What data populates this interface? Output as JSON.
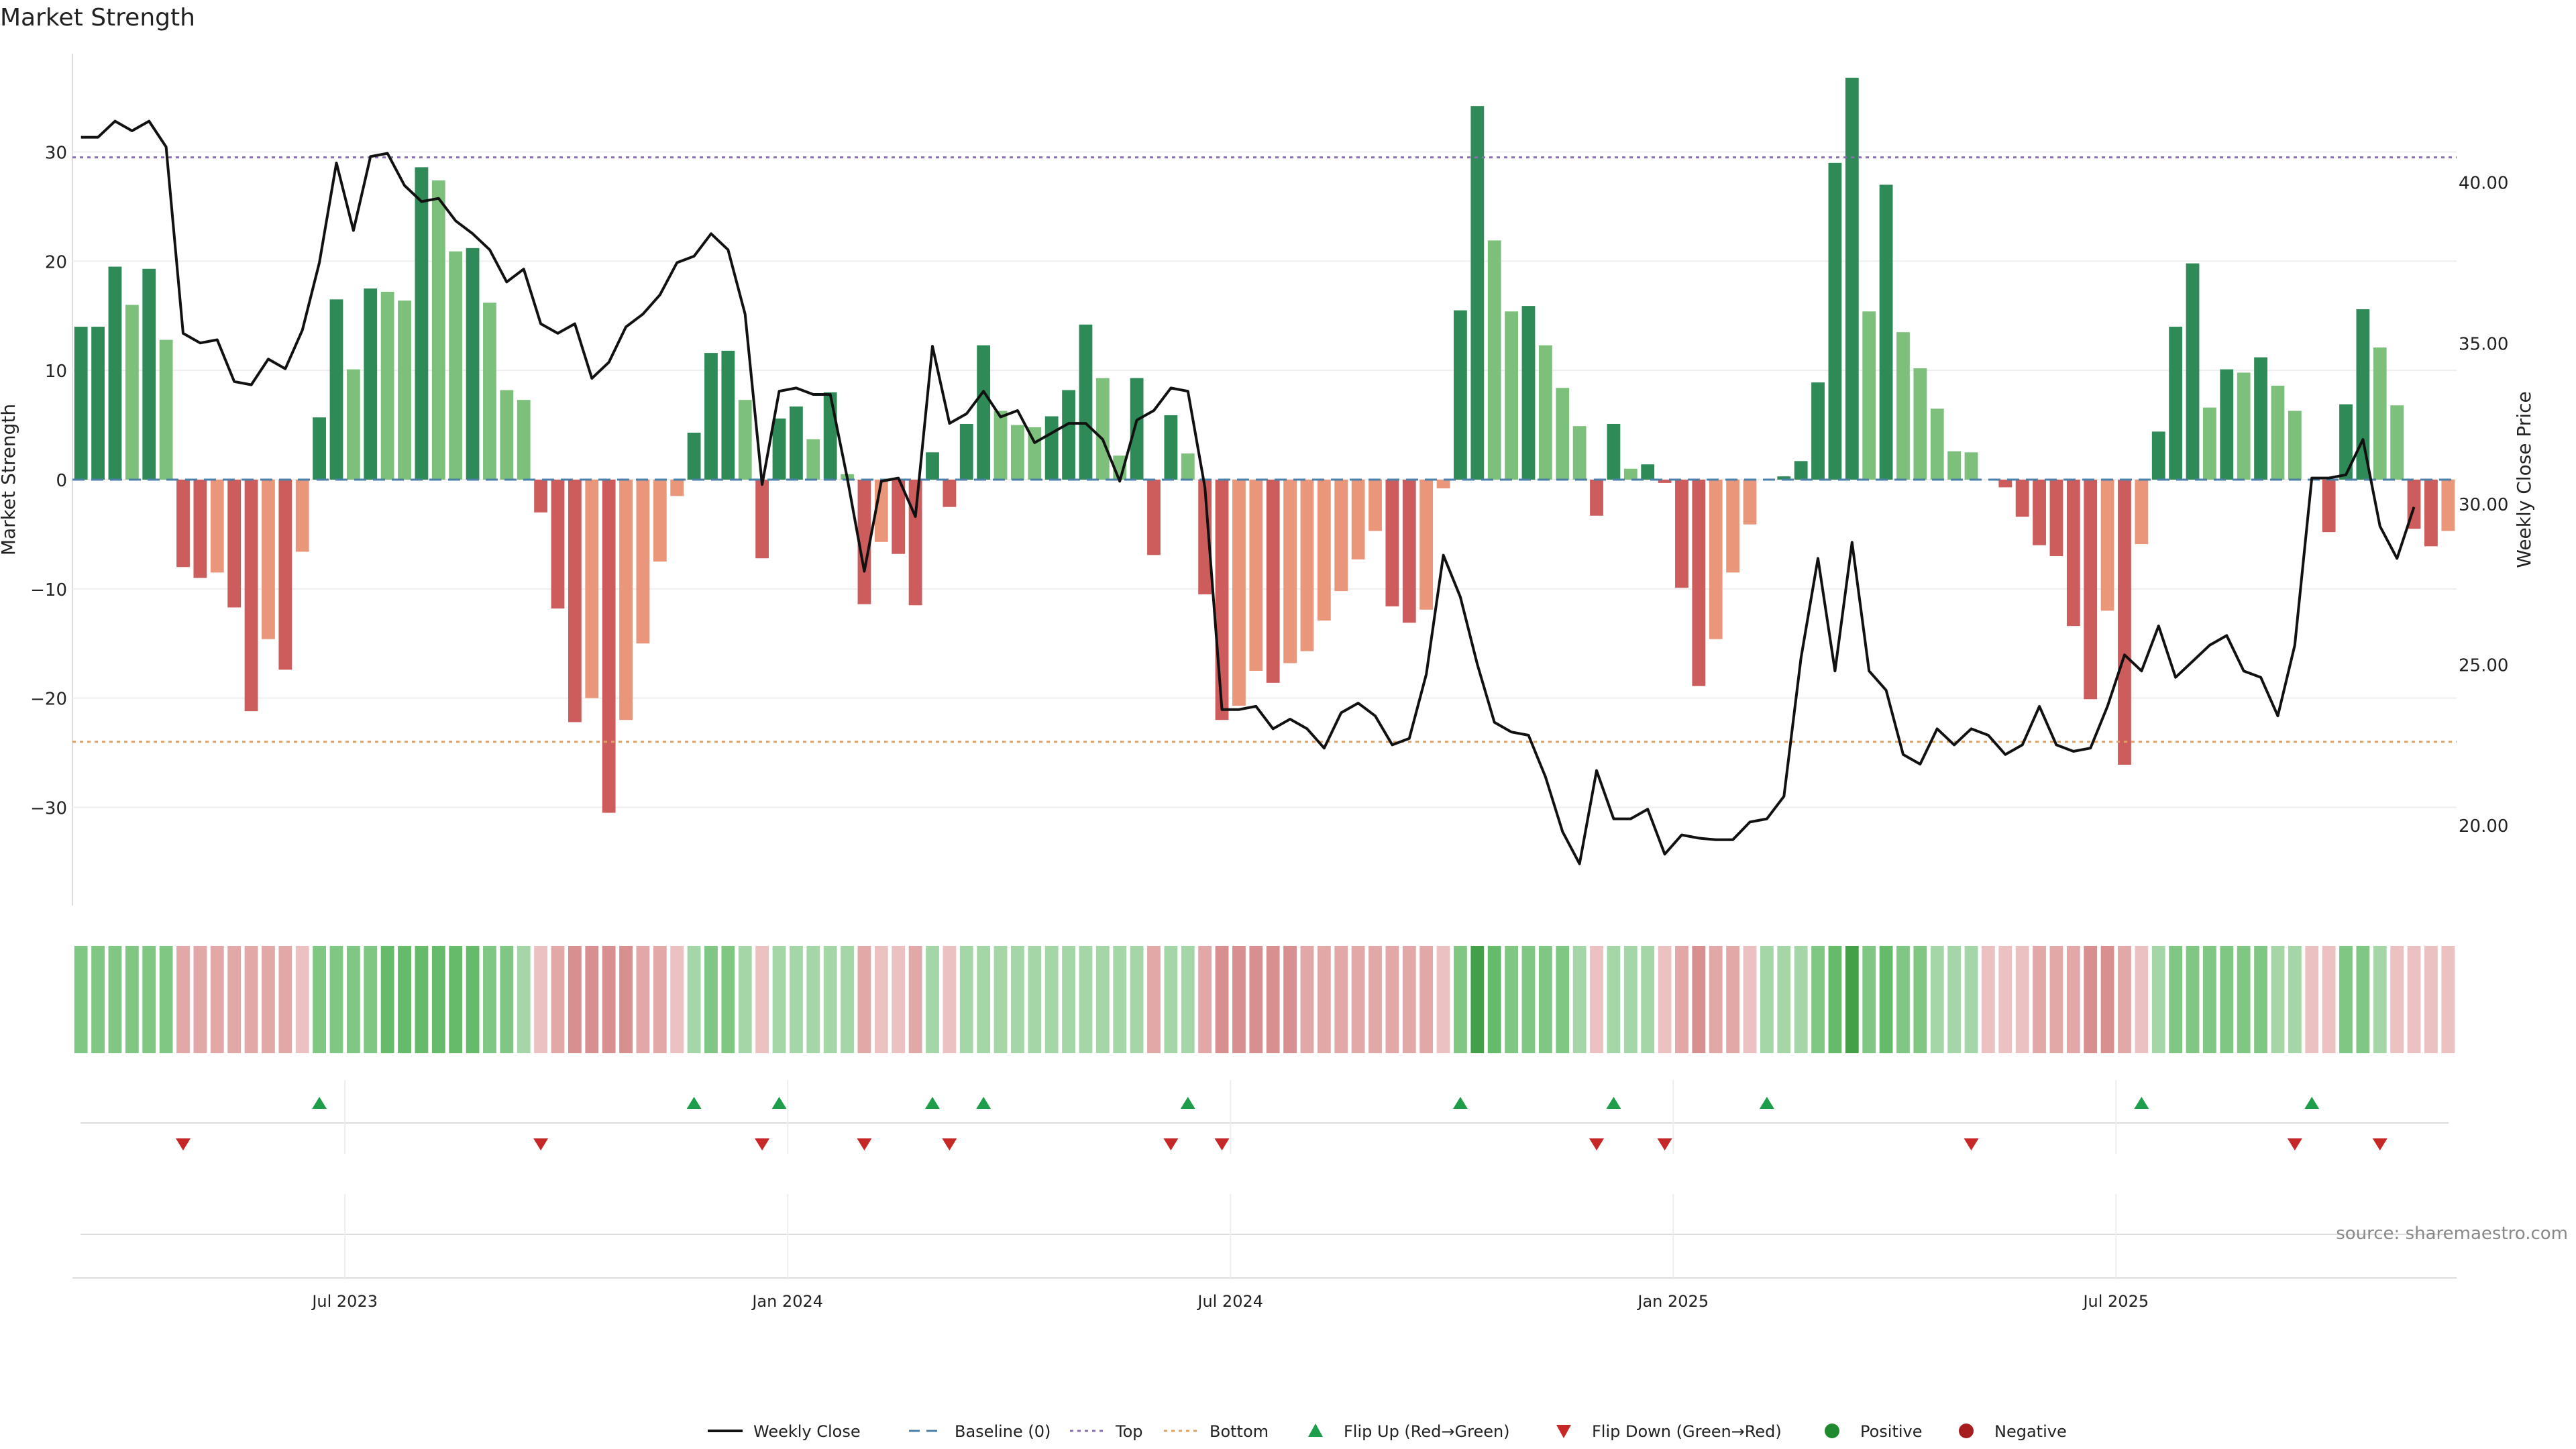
{
  "chart_data": {
    "type": "bar",
    "title": "Market Strength",
    "ylabel_left": "Market Strength",
    "ylabel_right": "Weekly Close Price",
    "source": "source: sharemaestro.com",
    "left_ylim": [
      -39,
      39
    ],
    "left_ticks": [
      -30,
      -20,
      -10,
      0,
      10,
      20,
      30
    ],
    "right_ylim": [
      17.5,
      44.0
    ],
    "right_ticks": [
      20.0,
      25.0,
      30.0,
      35.0,
      40.0
    ],
    "top_level": 29.5,
    "bottom_level": -24,
    "x_ticks": [
      {
        "label": "Jul 2023",
        "index": 16
      },
      {
        "label": "Jan 2024",
        "index": 42
      },
      {
        "label": "Jul 2024",
        "index": 68
      },
      {
        "label": "Jan 2025",
        "index": 94
      },
      {
        "label": "Jul 2025",
        "index": 120
      }
    ],
    "strength": [
      14,
      14,
      19.5,
      16,
      19.3,
      12.8,
      -8,
      -9,
      -8.5,
      -11.7,
      -21.2,
      -14.6,
      -17.4,
      -6.6,
      5.7,
      16.5,
      10.1,
      17.5,
      17.2,
      16.4,
      28.6,
      27.4,
      20.9,
      21.2,
      16.2,
      8.2,
      7.3,
      -3,
      -11.8,
      -22.2,
      -20,
      -30.5,
      -22,
      -15,
      -7.5,
      -1.5,
      4.3,
      11.6,
      11.8,
      7.3,
      -7.2,
      5.6,
      6.7,
      3.7,
      8,
      0.5,
      -11.4,
      -5.7,
      -6.8,
      -11.5,
      2.5,
      -2.5,
      5.1,
      12.3,
      6.3,
      5,
      4.8,
      5.8,
      8.2,
      14.2,
      9.3,
      2.2,
      9.3,
      -6.9,
      5.9,
      2.4,
      -10.5,
      -22,
      -20.7,
      -17.5,
      -18.6,
      -16.8,
      -15.7,
      -12.9,
      -10.2,
      -7.3,
      -4.7,
      -11.6,
      -13.1,
      -11.9,
      -0.8,
      15.5,
      34.2,
      21.9,
      15.4,
      15.9,
      12.3,
      8.4,
      4.9,
      -3.3,
      5.1,
      1,
      1.4,
      -0.3,
      -9.9,
      -18.9,
      -14.6,
      -8.5,
      -4.1,
      0,
      0.3,
      1.7,
      8.9,
      29,
      36.8,
      15.4,
      27,
      13.5,
      10.2,
      6.5,
      2.6,
      2.5,
      0,
      -0.7,
      -3.4,
      -6,
      -7,
      -13.4,
      -20.1,
      -12,
      -26.1,
      -5.9,
      4.4,
      14,
      19.8,
      6.6,
      10.1,
      9.8,
      11.2,
      8.6,
      6.3,
      0,
      -4.8,
      6.9,
      15.6,
      12.1,
      6.8,
      -4.5,
      -6.1,
      -4.7
    ],
    "close": [
      41.4,
      41.4,
      41.9,
      41.6,
      41.9,
      41.1,
      35.3,
      35.0,
      35.1,
      33.8,
      33.7,
      34.5,
      34.2,
      35.4,
      37.5,
      40.6,
      38.5,
      40.8,
      40.9,
      39.9,
      39.4,
      39.5,
      38.8,
      38.4,
      37.9,
      36.9,
      37.3,
      35.6,
      35.3,
      35.6,
      33.9,
      34.4,
      35.5,
      35.9,
      36.5,
      37.5,
      37.7,
      38.4,
      37.9,
      35.9,
      30.6,
      33.5,
      33.6,
      33.4,
      33.4,
      30.8,
      27.9,
      30.7,
      30.8,
      29.6,
      34.9,
      32.5,
      32.8,
      33.5,
      32.7,
      32.9,
      31.9,
      32.2,
      32.5,
      32.5,
      32.0,
      30.7,
      32.6,
      32.9,
      33.6,
      33.5,
      30.5,
      23.6,
      23.6,
      23.7,
      23.0,
      23.3,
      23.0,
      22.4,
      23.5,
      23.8,
      23.4,
      22.5,
      22.7,
      24.7,
      28.4,
      27.1,
      25.0,
      23.2,
      22.9,
      22.8,
      21.5,
      19.8,
      18.8,
      21.7,
      20.2,
      20.2,
      20.5,
      19.1,
      19.7,
      19.6,
      19.55,
      19.55,
      20.1,
      20.2,
      20.9,
      25.2,
      28.3,
      24.8,
      28.8,
      24.8,
      24.2,
      22.2,
      21.9,
      23.0,
      22.5,
      23.0,
      22.8,
      22.2,
      22.5,
      23.7,
      22.5,
      22.3,
      22.4,
      23.7,
      25.3,
      24.8,
      26.2,
      24.6,
      25.1,
      25.6,
      25.9,
      24.8,
      24.6,
      23.4,
      25.6,
      30.8,
      30.8,
      30.9,
      32.0,
      29.3,
      28.3,
      29.9
    ],
    "heat_blocks": [
      2,
      2,
      2,
      2,
      2,
      2,
      -2,
      -2,
      -2,
      -2,
      -2,
      -2,
      -2,
      -1,
      2,
      2,
      2,
      2,
      3,
      3,
      3,
      3,
      3,
      3,
      2,
      2,
      1,
      -1,
      -2,
      -3,
      -3,
      -3,
      -3,
      -2,
      -2,
      -1,
      1,
      2,
      2,
      1,
      -1,
      1,
      1,
      1,
      1,
      1,
      -2,
      -1,
      -1,
      -2,
      1,
      -1,
      1,
      1,
      1,
      1,
      1,
      1,
      1,
      1,
      1,
      1,
      1,
      -2,
      1,
      1,
      -2,
      -3,
      -3,
      -3,
      -3,
      -3,
      -2,
      -2,
      -2,
      -2,
      -2,
      -2,
      -2,
      -2,
      -1,
      2,
      4,
      3,
      2,
      2,
      2,
      2,
      1,
      -1,
      1,
      1,
      1,
      -1,
      -2,
      -3,
      -2,
      -2,
      -1,
      1,
      1,
      1,
      2,
      3,
      4,
      2,
      3,
      2,
      2,
      1,
      1,
      1,
      -1,
      -1,
      -1,
      -2,
      -2,
      -2,
      -3,
      -3,
      -2,
      -1,
      1,
      2,
      2,
      2,
      2,
      2,
      2,
      1,
      1,
      -1,
      -1,
      2,
      2,
      1,
      -1,
      -1,
      -1,
      -1
    ],
    "flip_up": [
      14,
      36,
      41,
      50,
      53,
      65,
      81,
      90,
      99,
      121,
      131
    ],
    "flip_down": [
      6,
      27,
      40,
      46,
      51,
      64,
      67,
      89,
      93,
      111,
      130,
      135
    ],
    "legend": [
      {
        "key": "close",
        "label": "Weekly Close"
      },
      {
        "key": "baseline",
        "label": "Baseline (0)"
      },
      {
        "key": "top",
        "label": "Top"
      },
      {
        "key": "bottom",
        "label": "Bottom"
      },
      {
        "key": "flipup",
        "label": "Flip Up (Red→Green)"
      },
      {
        "key": "flipdown",
        "label": "Flip Down (Green→Red)"
      },
      {
        "key": "positive",
        "label": "Positive"
      },
      {
        "key": "negative",
        "label": "Negative"
      }
    ],
    "colors": {
      "pos_strong": "#2e8b57",
      "pos_light": "#7cc07c",
      "neg_strong": "#cd5c5c",
      "neg_light": "#e9967a",
      "close": "#111111",
      "baseline": "#4b7fa8",
      "top": "#8a6fb3",
      "bottom": "#e0a060",
      "flip_up": "#1e9e4a",
      "flip_down": "#c62828",
      "positive": "#1f8a2e",
      "negative": "#a61e1e"
    }
  }
}
